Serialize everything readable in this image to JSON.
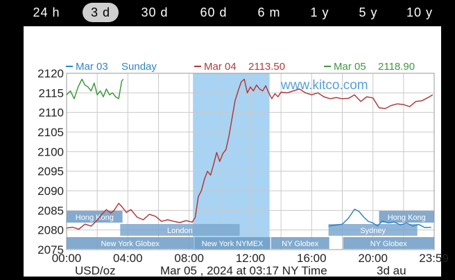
{
  "tabs": [
    {
      "label": "24 h",
      "active": false
    },
    {
      "label": "3 d",
      "active": true
    },
    {
      "label": "30 d",
      "active": false
    },
    {
      "label": "60 d",
      "active": false
    },
    {
      "label": "6 m",
      "active": false
    },
    {
      "label": "1 y",
      "active": false
    },
    {
      "label": "5 y",
      "active": false
    },
    {
      "label": "10 y",
      "active": false
    }
  ],
  "chart_data": {
    "type": "line",
    "legend": [
      {
        "date": "Mar 03",
        "value": "Sunday",
        "color": "#2e86c8"
      },
      {
        "date": "Mar 04",
        "value": "2113.50",
        "color": "#b03a3a"
      },
      {
        "date": "Mar 05",
        "value": "2118.90",
        "color": "#3d9a3d"
      }
    ],
    "watermark": "www.kitco.com",
    "ylim": [
      2075,
      2120
    ],
    "yticks": [
      2075,
      2080,
      2085,
      2090,
      2095,
      2100,
      2105,
      2110,
      2115,
      2120
    ],
    "xlim": [
      0,
      24
    ],
    "xticks": [
      {
        "x": 0,
        "label": "00:00"
      },
      {
        "x": 4,
        "label": "04:00"
      },
      {
        "x": 8,
        "label": "08:00"
      },
      {
        "x": 12,
        "label": "12:00"
      },
      {
        "x": 16,
        "label": "16:00"
      },
      {
        "x": 20,
        "label": "20:00"
      },
      {
        "x": 23.98,
        "label": "23:59"
      }
    ],
    "gridlines_x": [
      0,
      2,
      4,
      6,
      8,
      10,
      12,
      14,
      16,
      18,
      20,
      22
    ],
    "xlabel_left": "USD/oz",
    "xlabel_center": "Mar 05 , 2024 at 03:17 NY Time",
    "xlabel_right": "3d au",
    "highlight": {
      "x0": 8.25,
      "x1": 13.25
    },
    "sessions": [
      {
        "label": "Hong Kong",
        "x0": 0,
        "x1": 3.65,
        "row": 0
      },
      {
        "label": "Hong Kong",
        "x0": 20.4,
        "x1": 24,
        "row": 0
      },
      {
        "label": "London",
        "x0": 3.5,
        "x1": 11.3,
        "row": 1
      },
      {
        "label": "Sydney",
        "x0": 17.1,
        "x1": 22.9,
        "row": 1
      },
      {
        "label": "New York Globex",
        "x0": 0,
        "x1": 8.3,
        "row": 2
      },
      {
        "label": "New York NYMEX",
        "x0": 8.35,
        "x1": 13.3,
        "row": 2
      },
      {
        "label": "NY Globex",
        "x0": 13.35,
        "x1": 17.15,
        "row": 2
      },
      {
        "label": "NY Globex",
        "x0": 18.05,
        "x1": 24,
        "row": 2
      }
    ],
    "series": [
      {
        "name": "Mar 03",
        "color": "#2e86c8",
        "x": [
          17.1,
          17.5,
          18.0,
          18.4,
          18.8,
          19.1,
          19.4,
          19.7,
          20.0,
          20.3,
          20.6,
          21.0,
          21.4,
          21.8,
          22.2,
          22.6,
          23.0,
          23.4,
          23.8
        ],
        "y": [
          2081.0,
          2081.2,
          2081.5,
          2083.0,
          2085.3,
          2084.7,
          2083.3,
          2082.2,
          2081.8,
          2081.0,
          2082.3,
          2081.8,
          2082.0,
          2081.3,
          2081.8,
          2081.0,
          2081.4,
          2080.6,
          2080.7
        ]
      },
      {
        "name": "Mar 04",
        "color": "#b03a3a",
        "x": [
          0,
          0.4,
          0.8,
          1.2,
          1.6,
          2.0,
          2.3,
          2.6,
          2.9,
          3.1,
          3.4,
          3.6,
          3.9,
          4.2,
          4.6,
          5.0,
          5.4,
          5.8,
          6.2,
          6.6,
          7.0,
          7.4,
          7.8,
          8.2,
          8.4,
          8.6,
          8.8,
          9.0,
          9.2,
          9.4,
          9.6,
          9.8,
          10.0,
          10.2,
          10.4,
          10.6,
          10.8,
          11.0,
          11.2,
          11.4,
          11.6,
          11.8,
          12.0,
          12.2,
          12.4,
          12.6,
          12.8,
          13.0,
          13.2,
          13.4,
          13.6,
          13.8,
          14.0,
          14.4,
          14.8,
          15.2,
          15.6,
          16.0,
          16.4,
          16.8,
          17.2,
          17.6,
          18.0,
          18.4,
          18.8,
          19.2,
          19.6,
          20.0,
          20.4,
          20.8,
          21.2,
          21.6,
          22.0,
          22.4,
          22.8,
          23.2,
          23.6,
          23.9
        ],
        "y": [
          2080.5,
          2080.7,
          2080.2,
          2081.5,
          2081.0,
          2082.5,
          2084.0,
          2085.2,
          2084.3,
          2085.0,
          2086.8,
          2086.0,
          2084.5,
          2085.2,
          2083.3,
          2082.6,
          2084.0,
          2083.5,
          2082.2,
          2082.6,
          2082.2,
          2081.9,
          2082.4,
          2082.0,
          2083.2,
          2088.5,
          2090.0,
          2093.0,
          2095.0,
          2094.0,
          2096.8,
          2099.8,
          2097.5,
          2099.5,
          2100.5,
          2104.0,
          2108.5,
          2113.0,
          2115.5,
          2117.8,
          2118.5,
          2115.0,
          2116.5,
          2115.5,
          2117.0,
          2116.0,
          2115.5,
          2116.8,
          2115.0,
          2113.5,
          2114.8,
          2114.0,
          2115.2,
          2115.0,
          2115.5,
          2116.0,
          2115.0,
          2114.5,
          2115.0,
          2114.0,
          2113.5,
          2113.8,
          2113.5,
          2113.6,
          2114.5,
          2112.8,
          2114.0,
          2113.7,
          2111.2,
          2111.0,
          2111.8,
          2112.2,
          2112.0,
          2111.5,
          2112.8,
          2113.0,
          2113.8,
          2114.5
        ]
      },
      {
        "name": "Mar 05",
        "color": "#3d9a3d",
        "x": [
          0,
          0.25,
          0.5,
          0.75,
          1.0,
          1.2,
          1.4,
          1.6,
          1.8,
          2.0,
          2.2,
          2.4,
          2.6,
          2.8,
          3.0,
          3.2,
          3.4,
          3.6,
          3.7
        ],
        "y": [
          2114.5,
          2115.5,
          2113.5,
          2116.5,
          2118.5,
          2117.0,
          2116.5,
          2115.5,
          2117.5,
          2114.5,
          2115.5,
          2114.0,
          2116.0,
          2114.5,
          2115.0,
          2114.0,
          2113.5,
          2118.0,
          2118.5
        ]
      }
    ]
  }
}
